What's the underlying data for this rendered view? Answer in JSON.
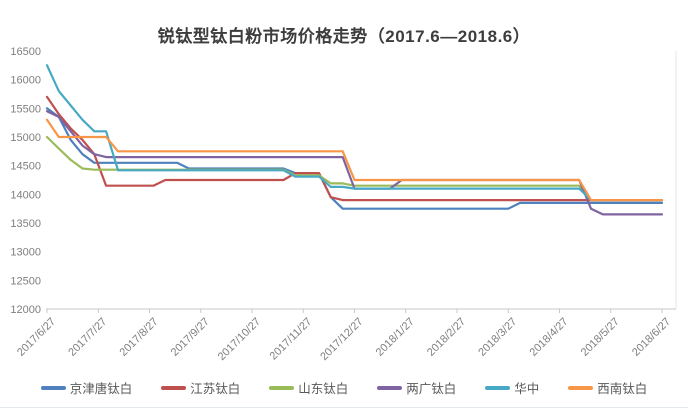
{
  "title": "锐钛型钛白粉市场价格走势（2017.6—2018.6）",
  "chart_data": {
    "type": "line",
    "title": "锐钛型钛白粉市场价格走势（2017.6—2018.6）",
    "xlabel": "",
    "ylabel": "",
    "ylim": [
      12000,
      16500
    ],
    "y_ticks": [
      16500,
      16000,
      15500,
      15000,
      14500,
      14000,
      13500,
      13000,
      12500,
      12000
    ],
    "x_tick_labels": [
      "2017/6/27",
      "2017/7/27",
      "2017/8/27",
      "2017/9/27",
      "2017/10/27",
      "2017/11/27",
      "2017/12/27",
      "2018/1/27",
      "2018/2/27",
      "2018/3/27",
      "2018/4/27",
      "2018/5/27",
      "2018/6/27"
    ],
    "x_unit": "weekly points from 2017/6/27 to 2018/6/27",
    "points_per_series": 53,
    "grid": false,
    "legend_position": "bottom",
    "axis_color": "#c9c9c9",
    "series": [
      {
        "name": "京津唐钛白",
        "color": "#4E81BD",
        "values": [
          15500,
          15350,
          14950,
          14700,
          14550,
          14550,
          14550,
          14550,
          14550,
          14550,
          14550,
          14550,
          14450,
          14450,
          14450,
          14450,
          14450,
          14450,
          14450,
          14450,
          14450,
          14370,
          14370,
          14370,
          13950,
          13750,
          13750,
          13750,
          13750,
          13750,
          13750,
          13750,
          13750,
          13750,
          13750,
          13750,
          13750,
          13750,
          13750,
          13750,
          13850,
          13850,
          13850,
          13850,
          13850,
          13850,
          13850,
          13850,
          13850,
          13850,
          13850,
          13850,
          13850
        ]
      },
      {
        "name": "江苏钛白",
        "color": "#C0504D",
        "values": [
          15700,
          15400,
          15150,
          14950,
          14700,
          14150,
          14150,
          14150,
          14150,
          14150,
          14250,
          14250,
          14250,
          14250,
          14250,
          14250,
          14250,
          14250,
          14250,
          14250,
          14250,
          14370,
          14370,
          14370,
          13950,
          13900,
          13900,
          13900,
          13900,
          13900,
          13900,
          13900,
          13900,
          13900,
          13900,
          13900,
          13900,
          13900,
          13900,
          13900,
          13900,
          13900,
          13900,
          13900,
          13900,
          13900,
          13900,
          13900,
          13900,
          13900,
          13900,
          13900,
          13900
        ]
      },
      {
        "name": "山东钛白",
        "color": "#9BBB59",
        "values": [
          15000,
          14800,
          14600,
          14450,
          14430,
          14430,
          14430,
          14430,
          14430,
          14430,
          14430,
          14430,
          14430,
          14430,
          14430,
          14430,
          14430,
          14430,
          14430,
          14430,
          14430,
          14330,
          14330,
          14330,
          14190,
          14190,
          14150,
          14150,
          14150,
          14150,
          14150,
          14150,
          14150,
          14150,
          14150,
          14150,
          14150,
          14150,
          14150,
          14150,
          14150,
          14150,
          14150,
          14150,
          14150,
          14150,
          13900,
          13900,
          13900,
          13900,
          13900,
          13900,
          13900
        ]
      },
      {
        "name": "两广钛白",
        "color": "#8064A2",
        "values": [
          15450,
          15350,
          15100,
          14850,
          14700,
          14650,
          14650,
          14650,
          14650,
          14650,
          14650,
          14650,
          14650,
          14650,
          14650,
          14650,
          14650,
          14650,
          14650,
          14650,
          14650,
          14650,
          14650,
          14650,
          14650,
          14650,
          14100,
          14100,
          14100,
          14100,
          14250,
          14250,
          14250,
          14250,
          14250,
          14250,
          14250,
          14250,
          14250,
          14250,
          14250,
          14250,
          14250,
          14250,
          14250,
          14250,
          13750,
          13650,
          13650,
          13650,
          13650,
          13650,
          13650
        ]
      },
      {
        "name": "华中",
        "color": "#48A9C5",
        "values": [
          16250,
          15800,
          15550,
          15300,
          15100,
          15100,
          14420,
          14420,
          14420,
          14420,
          14420,
          14420,
          14420,
          14420,
          14420,
          14420,
          14420,
          14420,
          14420,
          14420,
          14420,
          14310,
          14310,
          14310,
          14130,
          14130,
          14100,
          14100,
          14100,
          14100,
          14100,
          14100,
          14100,
          14100,
          14100,
          14100,
          14100,
          14100,
          14100,
          14100,
          14100,
          14100,
          14100,
          14100,
          14100,
          14100,
          13900,
          13900,
          13900,
          13900,
          13900,
          13900,
          13900
        ]
      },
      {
        "name": "西南钛白",
        "color": "#F79646",
        "values": [
          15300,
          15000,
          15000,
          15000,
          15000,
          15000,
          14750,
          14750,
          14750,
          14750,
          14750,
          14750,
          14750,
          14750,
          14750,
          14750,
          14750,
          14750,
          14750,
          14750,
          14750,
          14750,
          14750,
          14750,
          14750,
          14750,
          14250,
          14250,
          14250,
          14250,
          14250,
          14250,
          14250,
          14250,
          14250,
          14250,
          14250,
          14250,
          14250,
          14250,
          14250,
          14250,
          14250,
          14250,
          14250,
          14250,
          13900,
          13900,
          13900,
          13900,
          13900,
          13900,
          13900
        ]
      }
    ]
  }
}
